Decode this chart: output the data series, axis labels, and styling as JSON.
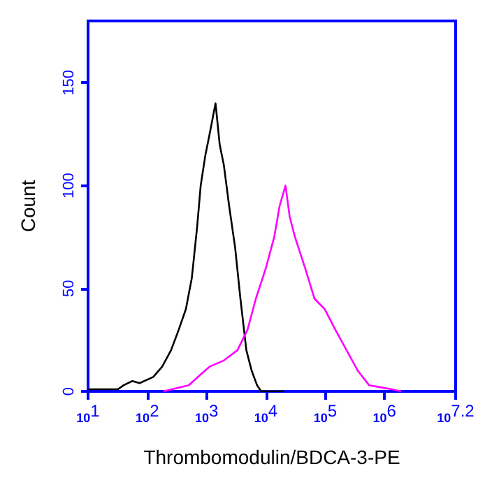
{
  "chart_data": {
    "type": "line",
    "xlabel": "Thrombomodulin/BDCA-3-PE",
    "ylabel": "Count",
    "log": "x",
    "grid": false,
    "marker": "none",
    "line_style": "solid",
    "xlim": [
      10,
      15848932
    ],
    "ylim": [
      0,
      180
    ],
    "xticks": [
      {
        "value": 10,
        "label": "10$^{1}$"
      },
      {
        "value": 100,
        "label": "10$^{2}$"
      },
      {
        "value": 1000,
        "label": "10$^{3}$"
      },
      {
        "value": 10000,
        "label": "10$^{4}$"
      },
      {
        "value": 100000,
        "label": "10$^{5}$"
      },
      {
        "value": 1000000,
        "label": "10$^{6}$"
      },
      {
        "value": 15848932,
        "label": "10$^{7.2}$"
      }
    ],
    "yticks": [
      0,
      50,
      100,
      150
    ],
    "series": [
      {
        "color": "#000000",
        "x": [
          10,
          32,
          40,
          56,
          74,
          126,
          178,
          251,
          339,
          447,
          562,
          692,
          794,
          955,
          1122,
          1413,
          1660,
          1950,
          2399,
          3020,
          3715,
          4677,
          5754,
          7079,
          8318,
          19953
        ],
        "values": [
          1,
          1,
          3,
          5,
          4,
          7,
          12,
          20,
          30,
          40,
          55,
          80,
          100,
          115,
          125,
          140,
          120,
          110,
          90,
          70,
          45,
          20,
          10,
          3,
          0,
          0
        ]
      },
      {
        "color": "#ff00ff",
        "x": [
          186,
          501,
          776,
          1122,
          1950,
          3311,
          4898,
          6761,
          10000,
          13804,
          16982,
          21380,
          25119,
          30903,
          45709,
          66069,
          97724,
          147911,
          229087,
          354813,
          549541,
          851138,
          1318257,
          1905461
        ],
        "values": [
          0,
          3,
          8,
          12,
          15,
          20,
          30,
          45,
          60,
          75,
          90,
          100,
          85,
          75,
          60,
          45,
          40,
          30,
          20,
          10,
          3,
          2,
          1,
          0
        ]
      }
    ]
  }
}
